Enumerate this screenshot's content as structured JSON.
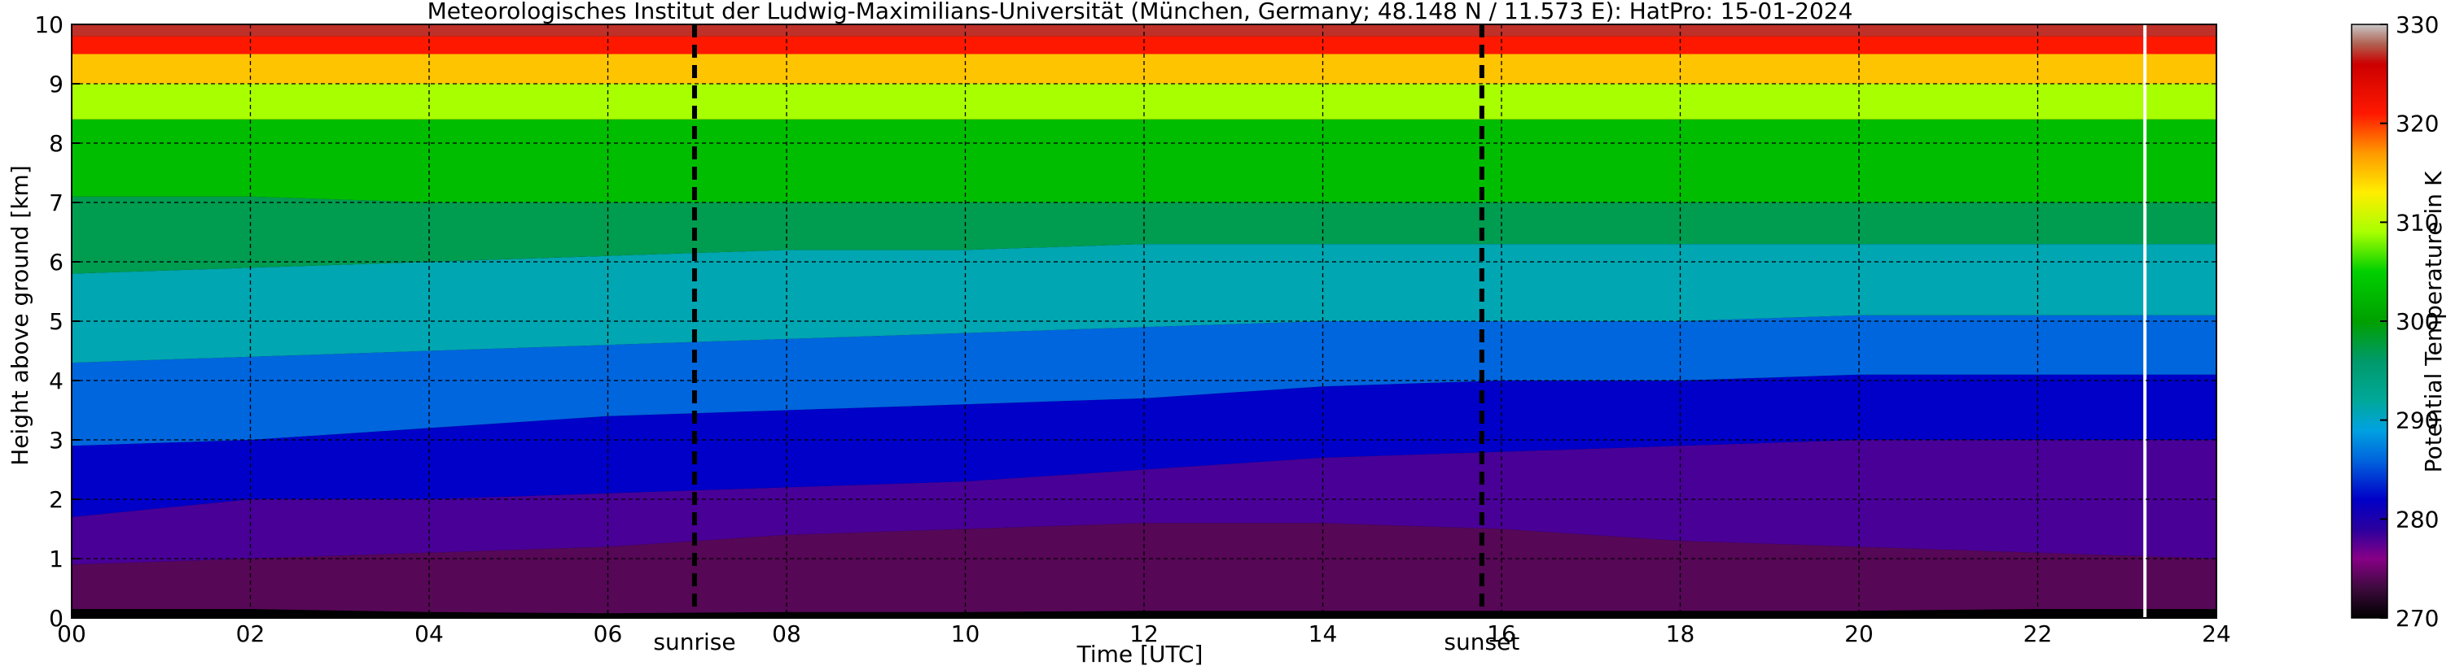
{
  "chart_data": {
    "type": "heatmap",
    "title": "Meteorologisches Institut der Ludwig-Maximilians-Universität (München, Germany; 48.148 N / 11.573 E):    HatPro: 15-01-2024",
    "xlabel": "Time [UTC]",
    "ylabel": "Height above ground [km]",
    "colorbar_label": "Potential Temperature in K",
    "xlim": [
      0,
      24
    ],
    "ylim": [
      0,
      10
    ],
    "clim": [
      270,
      330
    ],
    "x_ticks": [
      0,
      2,
      4,
      6,
      8,
      10,
      12,
      14,
      16,
      18,
      20,
      22,
      24
    ],
    "x_tick_labels": [
      "00",
      "02",
      "04",
      "06",
      "08",
      "10",
      "12",
      "14",
      "16",
      "18",
      "20",
      "22",
      "24"
    ],
    "y_ticks": [
      0,
      1,
      2,
      3,
      4,
      5,
      6,
      7,
      8,
      9,
      10
    ],
    "y_tick_labels": [
      "0",
      "1",
      "2",
      "3",
      "4",
      "5",
      "6",
      "7",
      "8",
      "9",
      "10"
    ],
    "colorbar_ticks": [
      270,
      280,
      290,
      300,
      310,
      320,
      330
    ],
    "colorbar_tick_labels": [
      "270",
      "280",
      "290",
      "300",
      "310",
      "320",
      "330"
    ],
    "grid": true,
    "annotations": [
      {
        "text": "sunrise",
        "x": 6.97
      },
      {
        "text": "sunset",
        "x": 15.78
      }
    ],
    "data_end_time": 23.2,
    "isentropes": [
      {
        "theta": 272,
        "height_km": [
          0.15,
          0.15,
          0.1,
          0.08,
          0.1,
          0.1,
          0.12,
          0.12,
          0.12,
          0.12,
          0.12,
          0.15,
          0.15
        ],
        "x": [
          0,
          2,
          4,
          6,
          8,
          10,
          12,
          14,
          16,
          18,
          20,
          22,
          24
        ]
      },
      {
        "theta": 276,
        "height_km": [
          0.9,
          1.0,
          1.1,
          1.2,
          1.4,
          1.5,
          1.6,
          1.6,
          1.5,
          1.3,
          1.2,
          1.1,
          1.0
        ],
        "x": [
          0,
          2,
          4,
          6,
          8,
          10,
          12,
          14,
          16,
          18,
          20,
          22,
          24
        ]
      },
      {
        "theta": 280,
        "height_km": [
          1.7,
          2.0,
          2.0,
          2.1,
          2.2,
          2.3,
          2.5,
          2.7,
          2.8,
          2.9,
          3.0,
          3.0,
          3.0
        ],
        "x": [
          0,
          2,
          4,
          6,
          8,
          10,
          12,
          14,
          16,
          18,
          20,
          22,
          24
        ]
      },
      {
        "theta": 284,
        "height_km": [
          2.9,
          3.0,
          3.2,
          3.4,
          3.5,
          3.6,
          3.7,
          3.9,
          4.0,
          4.0,
          4.1,
          4.1,
          4.1
        ],
        "x": [
          0,
          2,
          4,
          6,
          8,
          10,
          12,
          14,
          16,
          18,
          20,
          22,
          24
        ]
      },
      {
        "theta": 288,
        "height_km": [
          4.3,
          4.4,
          4.5,
          4.6,
          4.7,
          4.8,
          4.9,
          5.0,
          5.0,
          5.0,
          5.1,
          5.1,
          5.1
        ],
        "x": [
          0,
          2,
          4,
          6,
          8,
          10,
          12,
          14,
          16,
          18,
          20,
          22,
          24
        ]
      },
      {
        "theta": 294,
        "height_km": [
          5.8,
          5.9,
          6.0,
          6.1,
          6.2,
          6.2,
          6.3,
          6.3,
          6.3,
          6.3,
          6.3,
          6.3,
          6.3
        ],
        "x": [
          0,
          2,
          4,
          6,
          8,
          10,
          12,
          14,
          16,
          18,
          20,
          22,
          24
        ]
      },
      {
        "theta": 300,
        "height_km": [
          7.1,
          7.1,
          7.0,
          7.0,
          7.0,
          7.0,
          7.0,
          7.0,
          7.0,
          7.0,
          7.0,
          7.0,
          7.0
        ],
        "x": [
          0,
          2,
          4,
          6,
          8,
          10,
          12,
          14,
          16,
          18,
          20,
          22,
          24
        ]
      },
      {
        "theta": 306,
        "height_km": [
          8.4,
          8.4,
          8.4,
          8.4,
          8.4,
          8.4,
          8.4,
          8.4,
          8.4,
          8.4,
          8.4,
          8.4,
          8.4
        ],
        "x": [
          0,
          2,
          4,
          6,
          8,
          10,
          12,
          14,
          16,
          18,
          20,
          22,
          24
        ]
      },
      {
        "theta": 312,
        "height_km": [
          9.0,
          9.0,
          9.0,
          9.0,
          9.0,
          9.0,
          9.0,
          9.0,
          9.0,
          9.0,
          9.0,
          9.0,
          9.0
        ],
        "x": [
          0,
          2,
          4,
          6,
          8,
          10,
          12,
          14,
          16,
          18,
          20,
          22,
          24
        ]
      },
      {
        "theta": 318,
        "height_km": [
          9.5,
          9.5,
          9.5,
          9.5,
          9.5,
          9.5,
          9.5,
          9.5,
          9.5,
          9.5,
          9.5,
          9.5,
          9.5
        ],
        "x": [
          0,
          2,
          4,
          6,
          8,
          10,
          12,
          14,
          16,
          18,
          20,
          22,
          24
        ]
      },
      {
        "theta": 324,
        "height_km": [
          9.8,
          9.8,
          9.8,
          9.8,
          9.8,
          9.8,
          9.8,
          9.8,
          9.8,
          9.8,
          9.8,
          9.8,
          9.8
        ],
        "x": [
          0,
          2,
          4,
          6,
          8,
          10,
          12,
          14,
          16,
          18,
          20,
          22,
          24
        ]
      }
    ],
    "colormap": [
      {
        "value": 270,
        "color": "#000000"
      },
      {
        "value": 273,
        "color": "#3d0a3d"
      },
      {
        "value": 276,
        "color": "#870087"
      },
      {
        "value": 279,
        "color": "#2a009f"
      },
      {
        "value": 282,
        "color": "#0000c8"
      },
      {
        "value": 286,
        "color": "#0066dd"
      },
      {
        "value": 289,
        "color": "#00a2e0"
      },
      {
        "value": 292,
        "color": "#00a899"
      },
      {
        "value": 296,
        "color": "#009a6a"
      },
      {
        "value": 300,
        "color": "#00a000"
      },
      {
        "value": 305,
        "color": "#00d000"
      },
      {
        "value": 309,
        "color": "#a8ff00"
      },
      {
        "value": 313,
        "color": "#ffee00"
      },
      {
        "value": 317,
        "color": "#ff9900"
      },
      {
        "value": 321,
        "color": "#ff1800"
      },
      {
        "value": 326,
        "color": "#cc0000"
      },
      {
        "value": 328,
        "color": "#b06050"
      },
      {
        "value": 330,
        "color": "#c8c8c8"
      }
    ]
  }
}
